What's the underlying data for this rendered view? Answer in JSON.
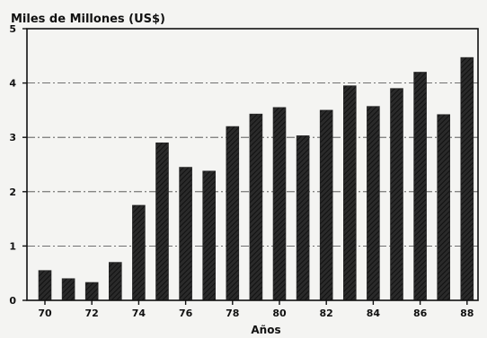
{
  "chart_data": {
    "type": "bar",
    "ylabel": "Miles de Millones (US$)",
    "xlabel": "Años",
    "x": [
      70,
      71,
      72,
      73,
      74,
      75,
      76,
      77,
      78,
      79,
      80,
      81,
      82,
      83,
      84,
      85,
      86,
      87,
      88
    ],
    "values": [
      0.55,
      0.4,
      0.33,
      0.7,
      1.75,
      2.9,
      2.45,
      2.38,
      3.2,
      3.43,
      3.55,
      3.03,
      3.5,
      3.95,
      3.57,
      3.9,
      4.2,
      3.42,
      4.47
    ],
    "xticks": [
      "70",
      "72",
      "74",
      "76",
      "78",
      "80",
      "82",
      "84",
      "86",
      "88"
    ],
    "ylim": [
      0,
      5
    ],
    "yticks": [
      "0",
      "1",
      "2",
      "3",
      "4",
      "5"
    ],
    "grid": "horizontal dashed",
    "colors": {
      "bar": "#262626",
      "axis": "#111111",
      "grid": "#444444"
    }
  }
}
